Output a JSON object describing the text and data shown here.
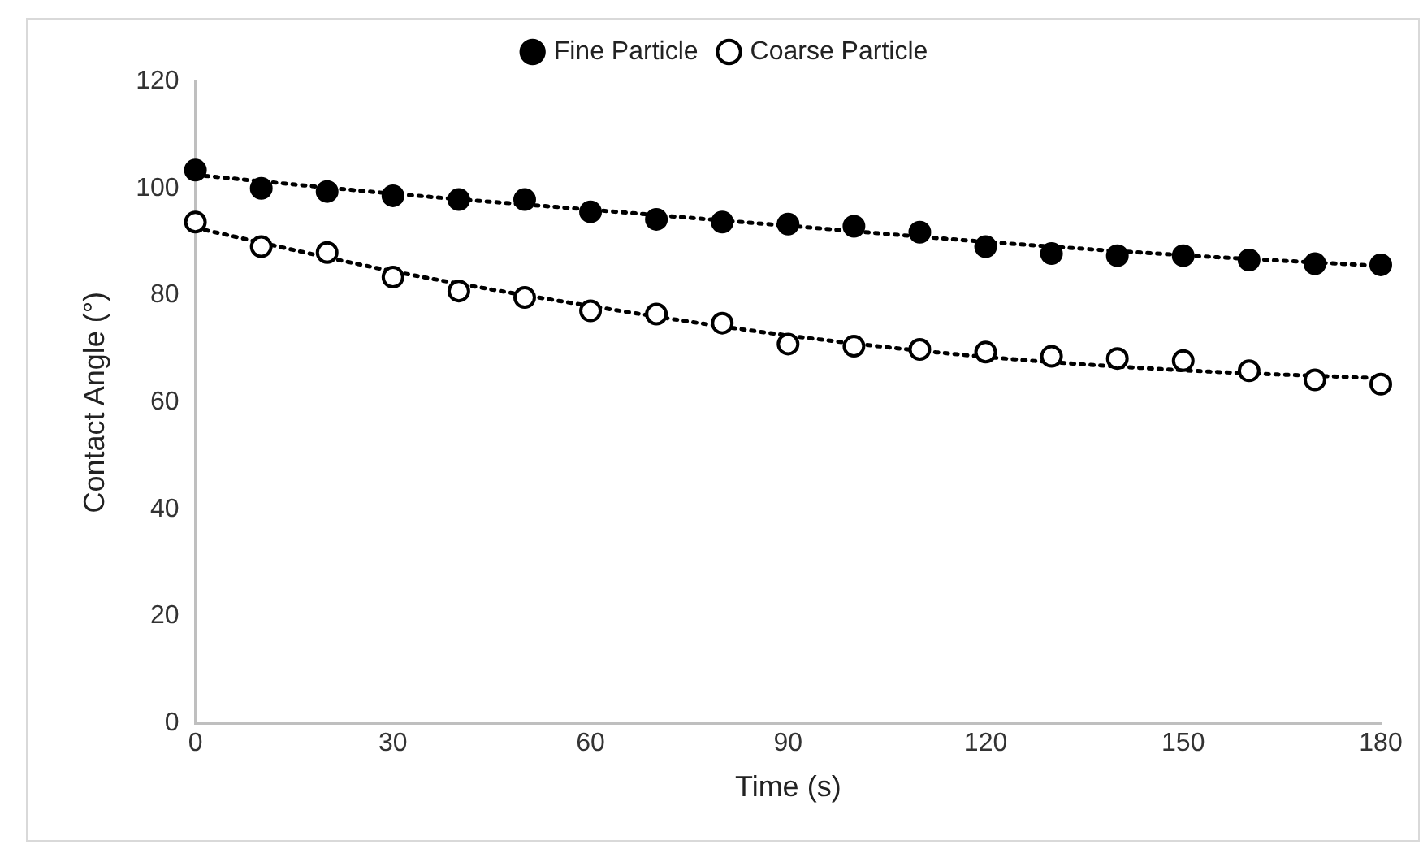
{
  "chart_data": {
    "type": "scatter",
    "xlabel": "Time (s)",
    "ylabel": "Contact Angle (°)",
    "x": [
      0,
      10,
      20,
      30,
      40,
      50,
      60,
      70,
      80,
      90,
      100,
      110,
      120,
      130,
      140,
      150,
      160,
      170,
      180
    ],
    "series": [
      {
        "name": "Fine Particle",
        "color": "#000000",
        "marker": "circle",
        "values": [
          103.4,
          100,
          99.4,
          98.6,
          97.9,
          97.9,
          95.6,
          94.2,
          93.7,
          93.3,
          92.9,
          91.8,
          89.1,
          87.8,
          87.4,
          87.4,
          86.6,
          85.9,
          85.7
        ]
      },
      {
        "name": "Coarse Particle",
        "color": "#ffffff",
        "marker": "circle",
        "values": [
          93.7,
          89.1,
          88,
          83.4,
          80.8,
          79.6,
          77.1,
          76.5,
          74.8,
          70.9,
          70.5,
          69.9,
          69.4,
          68.6,
          68.2,
          67.8,
          65.9,
          64.2,
          63.4
        ]
      },
      {
        "type": "line",
        "color": "#000000",
        "line_style": "dotted",
        "marker": "none",
        "x": [
          0,
          30,
          60,
          90,
          120,
          150,
          180
        ],
        "values": [
          102.5,
          99,
          96,
          93,
          90,
          87.5,
          85.5
        ]
      },
      {
        "type": "line",
        "color": "#000000",
        "line_style": "dotted",
        "marker": "none",
        "x": [
          0,
          30,
          60,
          90,
          120,
          150,
          180
        ],
        "values": [
          92.6,
          84.5,
          78,
          72.5,
          68.5,
          66,
          64.5
        ]
      }
    ],
    "xlim": [
      0,
      180
    ],
    "xticks": [
      0,
      30,
      60,
      90,
      120,
      150,
      180
    ],
    "ylim": [
      0,
      120
    ],
    "yticks": [
      0,
      20,
      40,
      60,
      80,
      100,
      120
    ],
    "grid": false,
    "legend": "top"
  }
}
